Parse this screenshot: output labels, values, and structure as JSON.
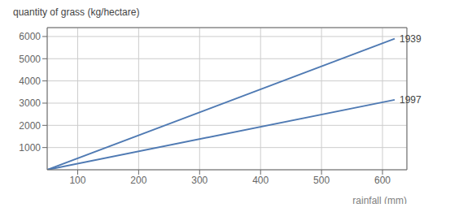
{
  "chart_data": {
    "type": "line",
    "x_label": "rainfall (mm)",
    "y_label": "quantity of grass (kg/hectare)",
    "x": [
      50,
      620
    ],
    "series": [
      {
        "name": "1939",
        "color": "#4f7ab3",
        "values": [
          0,
          5900
        ]
      },
      {
        "name": "1997",
        "color": "#4f7ab3",
        "values": [
          0,
          3150
        ]
      }
    ],
    "xlim": [
      50,
      640
    ],
    "ylim": [
      0,
      6400
    ],
    "xticks": [
      100,
      200,
      300,
      400,
      500,
      600
    ],
    "yticks": [
      1000,
      2000,
      3000,
      4000,
      5000,
      6000
    ],
    "grid": true
  }
}
